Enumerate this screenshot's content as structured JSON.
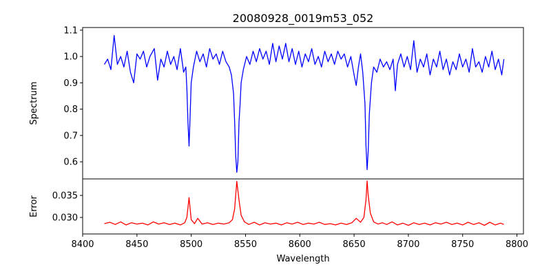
{
  "chart_data": [
    {
      "type": "line",
      "panel": "top",
      "title": "20080928_0019m53_052",
      "xlabel": "",
      "ylabel": "Spectrum",
      "xlim": [
        8400,
        8806
      ],
      "ylim": [
        0.535,
        1.11
      ],
      "yticks": [
        0.6,
        0.7,
        0.8,
        0.9,
        1.0,
        1.1
      ],
      "ytick_labels": [
        "0.6",
        "0.7",
        "0.8",
        "0.9",
        "1.0",
        "1.1"
      ],
      "grid": false,
      "color": "#0000ff",
      "points": [
        [
          8420,
          0.97
        ],
        [
          8423,
          0.99
        ],
        [
          8426,
          0.95
        ],
        [
          8429,
          1.08
        ],
        [
          8432,
          0.97
        ],
        [
          8435,
          1.0
        ],
        [
          8438,
          0.96
        ],
        [
          8441,
          1.02
        ],
        [
          8444,
          0.94
        ],
        [
          8447,
          0.9
        ],
        [
          8450,
          1.01
        ],
        [
          8453,
          0.99
        ],
        [
          8456,
          1.02
        ],
        [
          8459,
          0.96
        ],
        [
          8462,
          1.0
        ],
        [
          8466,
          1.03
        ],
        [
          8469,
          0.91
        ],
        [
          8472,
          0.99
        ],
        [
          8475,
          0.96
        ],
        [
          8478,
          1.02
        ],
        [
          8481,
          0.97
        ],
        [
          8484,
          1.0
        ],
        [
          8487,
          0.95
        ],
        [
          8490,
          1.03
        ],
        [
          8493,
          0.94
        ],
        [
          8495,
          0.96
        ],
        [
          8496,
          0.88
        ],
        [
          8497,
          0.75
        ],
        [
          8498,
          0.66
        ],
        [
          8499,
          0.78
        ],
        [
          8500,
          0.9
        ],
        [
          8502,
          0.96
        ],
        [
          8505,
          1.02
        ],
        [
          8508,
          0.98
        ],
        [
          8511,
          1.01
        ],
        [
          8514,
          0.96
        ],
        [
          8517,
          1.03
        ],
        [
          8520,
          0.99
        ],
        [
          8523,
          1.01
        ],
        [
          8526,
          0.97
        ],
        [
          8529,
          1.02
        ],
        [
          8532,
          0.98
        ],
        [
          8535,
          0.96
        ],
        [
          8537,
          0.93
        ],
        [
          8539,
          0.86
        ],
        [
          8540,
          0.75
        ],
        [
          8541,
          0.62
        ],
        [
          8542,
          0.56
        ],
        [
          8543,
          0.6
        ],
        [
          8544,
          0.75
        ],
        [
          8545,
          0.82
        ],
        [
          8546,
          0.9
        ],
        [
          8548,
          0.95
        ],
        [
          8551,
          1.0
        ],
        [
          8554,
          0.97
        ],
        [
          8557,
          1.02
        ],
        [
          8560,
          0.98
        ],
        [
          8563,
          1.03
        ],
        [
          8566,
          0.99
        ],
        [
          8569,
          1.02
        ],
        [
          8572,
          0.97
        ],
        [
          8575,
          1.05
        ],
        [
          8578,
          0.98
        ],
        [
          8581,
          1.04
        ],
        [
          8584,
          0.99
        ],
        [
          8587,
          1.05
        ],
        [
          8590,
          0.98
        ],
        [
          8593,
          1.03
        ],
        [
          8596,
          0.97
        ],
        [
          8599,
          1.02
        ],
        [
          8602,
          0.96
        ],
        [
          8605,
          1.01
        ],
        [
          8608,
          0.98
        ],
        [
          8611,
          1.03
        ],
        [
          8614,
          0.97
        ],
        [
          8617,
          1.0
        ],
        [
          8620,
          0.96
        ],
        [
          8623,
          1.02
        ],
        [
          8626,
          0.98
        ],
        [
          8629,
          1.01
        ],
        [
          8632,
          0.97
        ],
        [
          8635,
          1.02
        ],
        [
          8638,
          0.99
        ],
        [
          8641,
          1.01
        ],
        [
          8644,
          0.96
        ],
        [
          8647,
          1.0
        ],
        [
          8650,
          0.93
        ],
        [
          8652,
          0.89
        ],
        [
          8654,
          0.96
        ],
        [
          8656,
          1.01
        ],
        [
          8658,
          0.94
        ],
        [
          8660,
          0.82
        ],
        [
          8661,
          0.66
        ],
        [
          8662,
          0.57
        ],
        [
          8663,
          0.64
        ],
        [
          8664,
          0.78
        ],
        [
          8666,
          0.9
        ],
        [
          8668,
          0.96
        ],
        [
          8671,
          0.94
        ],
        [
          8674,
          0.99
        ],
        [
          8677,
          0.96
        ],
        [
          8680,
          0.98
        ],
        [
          8683,
          0.95
        ],
        [
          8686,
          0.99
        ],
        [
          8688,
          0.87
        ],
        [
          8690,
          0.97
        ],
        [
          8693,
          1.01
        ],
        [
          8696,
          0.96
        ],
        [
          8699,
          1.0
        ],
        [
          8702,
          0.95
        ],
        [
          8705,
          1.06
        ],
        [
          8708,
          0.94
        ],
        [
          8711,
          0.99
        ],
        [
          8714,
          0.96
        ],
        [
          8717,
          1.01
        ],
        [
          8720,
          0.93
        ],
        [
          8723,
          0.99
        ],
        [
          8726,
          0.96
        ],
        [
          8729,
          1.02
        ],
        [
          8732,
          0.95
        ],
        [
          8735,
          0.99
        ],
        [
          8738,
          0.93
        ],
        [
          8741,
          0.98
        ],
        [
          8744,
          0.95
        ],
        [
          8747,
          1.01
        ],
        [
          8750,
          0.96
        ],
        [
          8753,
          0.99
        ],
        [
          8756,
          0.94
        ],
        [
          8759,
          1.03
        ],
        [
          8762,
          0.96
        ],
        [
          8765,
          0.98
        ],
        [
          8768,
          0.94
        ],
        [
          8771,
          1.0
        ],
        [
          8774,
          0.96
        ],
        [
          8777,
          1.02
        ],
        [
          8780,
          0.95
        ],
        [
          8783,
          0.99
        ],
        [
          8786,
          0.93
        ],
        [
          8788,
          0.99
        ]
      ]
    },
    {
      "type": "line",
      "panel": "bottom",
      "xlabel": "Wavelength",
      "ylabel": "Error",
      "xlim": [
        8400,
        8806
      ],
      "ylim": [
        0.02625,
        0.03875
      ],
      "xticks": [
        8400,
        8450,
        8500,
        8550,
        8600,
        8650,
        8700,
        8750,
        8800
      ],
      "xtick_labels": [
        "8400",
        "8450",
        "8500",
        "8550",
        "8600",
        "8650",
        "8700",
        "8750",
        "8800"
      ],
      "yticks": [
        0.03,
        0.035
      ],
      "ytick_labels": [
        "0.030",
        "0.035"
      ],
      "grid": false,
      "color": "#ff0000",
      "points": [
        [
          8420,
          0.0286
        ],
        [
          8425,
          0.0289
        ],
        [
          8430,
          0.0284
        ],
        [
          8435,
          0.029
        ],
        [
          8440,
          0.0283
        ],
        [
          8445,
          0.0288
        ],
        [
          8450,
          0.0285
        ],
        [
          8455,
          0.0287
        ],
        [
          8460,
          0.0283
        ],
        [
          8465,
          0.029
        ],
        [
          8470,
          0.0285
        ],
        [
          8475,
          0.0288
        ],
        [
          8480,
          0.0284
        ],
        [
          8485,
          0.0287
        ],
        [
          8490,
          0.0283
        ],
        [
          8494,
          0.0288
        ],
        [
          8496,
          0.03
        ],
        [
          8498,
          0.0345
        ],
        [
          8500,
          0.0295
        ],
        [
          8503,
          0.0286
        ],
        [
          8506,
          0.0298
        ],
        [
          8510,
          0.0285
        ],
        [
          8515,
          0.0288
        ],
        [
          8520,
          0.0284
        ],
        [
          8525,
          0.0287
        ],
        [
          8530,
          0.0285
        ],
        [
          8535,
          0.0288
        ],
        [
          8538,
          0.0295
        ],
        [
          8540,
          0.032
        ],
        [
          8542,
          0.0382
        ],
        [
          8544,
          0.034
        ],
        [
          8546,
          0.0305
        ],
        [
          8549,
          0.029
        ],
        [
          8553,
          0.0284
        ],
        [
          8558,
          0.0289
        ],
        [
          8563,
          0.0283
        ],
        [
          8568,
          0.0288
        ],
        [
          8573,
          0.0285
        ],
        [
          8578,
          0.0287
        ],
        [
          8583,
          0.0283
        ],
        [
          8588,
          0.0288
        ],
        [
          8593,
          0.0285
        ],
        [
          8598,
          0.0289
        ],
        [
          8603,
          0.0284
        ],
        [
          8608,
          0.0287
        ],
        [
          8613,
          0.0285
        ],
        [
          8618,
          0.0289
        ],
        [
          8623,
          0.0284
        ],
        [
          8628,
          0.0286
        ],
        [
          8633,
          0.0283
        ],
        [
          8638,
          0.0287
        ],
        [
          8643,
          0.0284
        ],
        [
          8648,
          0.0288
        ],
        [
          8652,
          0.0298
        ],
        [
          8656,
          0.0289
        ],
        [
          8659,
          0.03
        ],
        [
          8661,
          0.034
        ],
        [
          8662,
          0.0383
        ],
        [
          8663,
          0.035
        ],
        [
          8665,
          0.031
        ],
        [
          8668,
          0.029
        ],
        [
          8672,
          0.0285
        ],
        [
          8676,
          0.0288
        ],
        [
          8680,
          0.0284
        ],
        [
          8685,
          0.029
        ],
        [
          8690,
          0.0283
        ],
        [
          8695,
          0.0287
        ],
        [
          8700,
          0.0282
        ],
        [
          8705,
          0.0288
        ],
        [
          8710,
          0.0284
        ],
        [
          8715,
          0.0287
        ],
        [
          8720,
          0.0283
        ],
        [
          8725,
          0.0288
        ],
        [
          8730,
          0.0285
        ],
        [
          8735,
          0.0289
        ],
        [
          8740,
          0.0284
        ],
        [
          8745,
          0.0287
        ],
        [
          8750,
          0.0283
        ],
        [
          8755,
          0.0289
        ],
        [
          8760,
          0.0284
        ],
        [
          8765,
          0.0288
        ],
        [
          8770,
          0.0282
        ],
        [
          8775,
          0.0289
        ],
        [
          8780,
          0.0283
        ],
        [
          8785,
          0.0287
        ],
        [
          8788,
          0.0284
        ]
      ]
    }
  ]
}
